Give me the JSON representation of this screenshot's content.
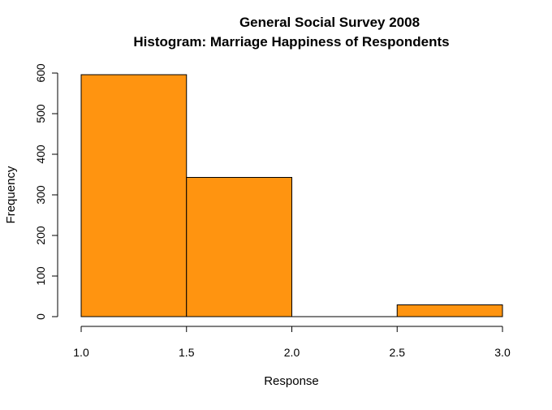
{
  "chart_data": {
    "type": "bar",
    "title": "General Social Survey 2008",
    "subtitle": "Histogram: Marriage Happiness of Respondents",
    "xlabel": "Response",
    "ylabel": "Frequency",
    "bins": [
      {
        "x0": 1.0,
        "x1": 1.5,
        "count": 596
      },
      {
        "x0": 1.5,
        "x1": 2.0,
        "count": 343
      },
      {
        "x0": 2.0,
        "x1": 2.5,
        "count": 0
      },
      {
        "x0": 2.5,
        "x1": 3.0,
        "count": 29
      }
    ],
    "xlim": [
      1.0,
      3.0
    ],
    "ylim": [
      0,
      600
    ],
    "xticks": [
      "1.0",
      "1.5",
      "2.0",
      "2.5",
      "3.0"
    ],
    "yticks": [
      "0",
      "100",
      "200",
      "300",
      "400",
      "500",
      "600"
    ],
    "bar_color": "#ff9410",
    "grid": false,
    "legend": "none"
  }
}
